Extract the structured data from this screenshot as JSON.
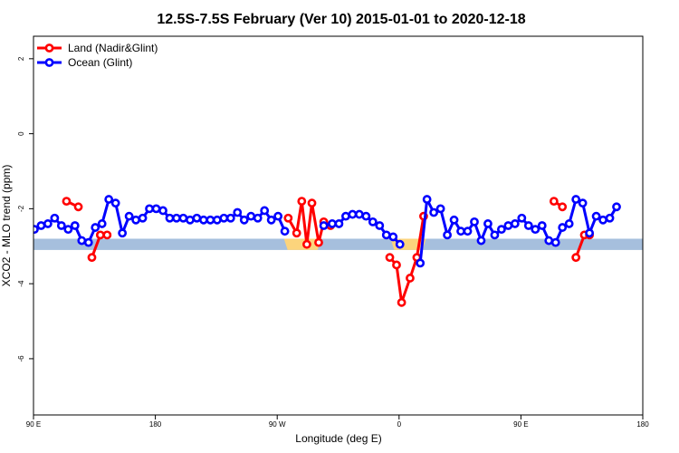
{
  "chart_data": {
    "type": "line",
    "title": "12.5S-7.5S February (Ver 10)   2015-01-01 to 2020-12-18",
    "xlabel": "Longitude (deg E)",
    "ylabel": "XCO2 - MLO trend (ppm)",
    "xlim": [
      90,
      450
    ],
    "ylim": [
      -7.5,
      2.6
    ],
    "x_ticks": [
      {
        "value": 90,
        "label": "90 E"
      },
      {
        "value": 162,
        "label": "180"
      },
      {
        "value": 234,
        "label": "90 W"
      },
      {
        "value": 306,
        "label": "0"
      },
      {
        "value": 378,
        "label": "90 E"
      },
      {
        "value": 450,
        "label": "180"
      }
    ],
    "y_ticks": [
      {
        "value": 2,
        "label": "2"
      },
      {
        "value": 0,
        "label": "0"
      },
      {
        "value": -2,
        "label": "-2"
      },
      {
        "value": -4,
        "label": "-4"
      },
      {
        "value": -6,
        "label": "-6"
      }
    ],
    "legend_position": "top-left",
    "band": {
      "y_low": -3.1,
      "y_high": -2.8,
      "color": "#a6bfdd",
      "land_color": "#fcd47c"
    },
    "land_band_ranges": [
      [
        238,
        260
      ],
      [
        301,
        322
      ]
    ],
    "series": [
      {
        "name": "Land (Nadir&Glint)",
        "color": "#ff0000",
        "segments": [
          [
            [
              109.5,
              -1.8
            ],
            [
              116.5,
              -1.95
            ]
          ],
          [
            [
              124.5,
              -3.3
            ],
            [
              129.5,
              -2.7
            ],
            [
              133.5,
              -2.7
            ]
          ],
          [
            [
              240.5,
              -2.25
            ],
            [
              245.5,
              -2.65
            ],
            [
              248.5,
              -1.8
            ],
            [
              251.5,
              -2.95
            ],
            [
              254.5,
              -1.85
            ],
            [
              258.5,
              -2.9
            ],
            [
              261.5,
              -2.35
            ],
            [
              265.5,
              -2.45
            ]
          ],
          [
            [
              300.5,
              -3.3
            ],
            [
              304.5,
              -3.5
            ],
            [
              307.5,
              -4.5
            ],
            [
              312.5,
              -3.85
            ],
            [
              316.5,
              -3.3
            ],
            [
              320.5,
              -2.2
            ]
          ],
          [
            [
              397.5,
              -1.8
            ],
            [
              402.5,
              -1.95
            ]
          ],
          [
            [
              410.5,
              -3.3
            ],
            [
              415.5,
              -2.7
            ],
            [
              418.5,
              -2.7
            ]
          ]
        ]
      },
      {
        "name": "Ocean (Glint)",
        "color": "#0000ff",
        "segments": [
          [
            [
              90.5,
              -2.55
            ],
            [
              94.5,
              -2.45
            ],
            [
              98.5,
              -2.4
            ],
            [
              102.5,
              -2.25
            ],
            [
              106.5,
              -2.45
            ],
            [
              110.5,
              -2.55
            ],
            [
              114.5,
              -2.45
            ],
            [
              118.5,
              -2.85
            ],
            [
              122.5,
              -2.9
            ],
            [
              126.5,
              -2.5
            ],
            [
              130.5,
              -2.4
            ],
            [
              134.5,
              -1.75
            ],
            [
              138.5,
              -1.85
            ],
            [
              142.5,
              -2.65
            ],
            [
              146.5,
              -2.2
            ],
            [
              150.5,
              -2.3
            ],
            [
              154.5,
              -2.25
            ],
            [
              158.5,
              -2.0
            ],
            [
              162.5,
              -2.0
            ],
            [
              166.5,
              -2.05
            ],
            [
              170.5,
              -2.25
            ],
            [
              174.5,
              -2.25
            ],
            [
              178.5,
              -2.25
            ],
            [
              182.5,
              -2.3
            ],
            [
              186.5,
              -2.25
            ],
            [
              190.5,
              -2.3
            ],
            [
              194.5,
              -2.3
            ],
            [
              198.5,
              -2.3
            ],
            [
              202.5,
              -2.25
            ],
            [
              206.5,
              -2.25
            ],
            [
              210.5,
              -2.1
            ],
            [
              214.5,
              -2.3
            ],
            [
              218.5,
              -2.2
            ],
            [
              222.5,
              -2.25
            ],
            [
              226.5,
              -2.05
            ],
            [
              230.5,
              -2.3
            ],
            [
              234.5,
              -2.2
            ],
            [
              238.5,
              -2.6
            ]
          ],
          [
            [
              261.5,
              -2.45
            ],
            [
              266.5,
              -2.4
            ],
            [
              270.5,
              -2.4
            ],
            [
              274.5,
              -2.2
            ],
            [
              278.5,
              -2.15
            ],
            [
              282.5,
              -2.15
            ],
            [
              286.5,
              -2.2
            ],
            [
              290.5,
              -2.35
            ],
            [
              294.5,
              -2.45
            ],
            [
              298.5,
              -2.7
            ],
            [
              302.5,
              -2.75
            ],
            [
              306.5,
              -2.95
            ]
          ],
          [
            [
              318.5,
              -3.45
            ],
            [
              322.5,
              -1.75
            ],
            [
              326.5,
              -2.1
            ],
            [
              330.5,
              -2.0
            ],
            [
              334.5,
              -2.7
            ],
            [
              338.5,
              -2.3
            ],
            [
              342.5,
              -2.6
            ],
            [
              346.5,
              -2.6
            ],
            [
              350.5,
              -2.35
            ],
            [
              354.5,
              -2.85
            ],
            [
              358.5,
              -2.4
            ],
            [
              362.5,
              -2.7
            ],
            [
              366.5,
              -2.55
            ],
            [
              370.5,
              -2.45
            ],
            [
              374.5,
              -2.4
            ],
            [
              378.5,
              -2.25
            ],
            [
              382.5,
              -2.45
            ],
            [
              386.5,
              -2.55
            ],
            [
              390.5,
              -2.45
            ],
            [
              394.5,
              -2.85
            ],
            [
              398.5,
              -2.9
            ],
            [
              402.5,
              -2.5
            ],
            [
              406.5,
              -2.4
            ],
            [
              410.5,
              -1.75
            ],
            [
              414.5,
              -1.85
            ],
            [
              418.5,
              -2.65
            ],
            [
              422.5,
              -2.2
            ],
            [
              426.5,
              -2.3
            ],
            [
              430.5,
              -2.25
            ],
            [
              434.5,
              -1.95
            ]
          ]
        ]
      }
    ]
  }
}
